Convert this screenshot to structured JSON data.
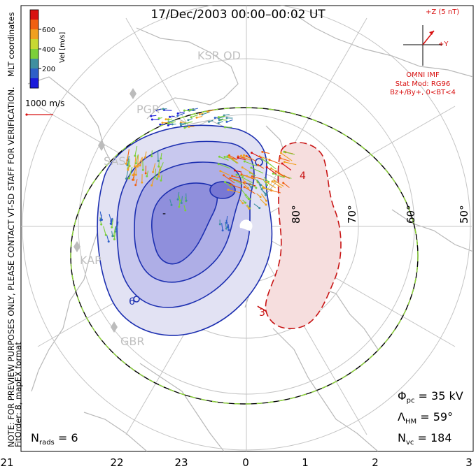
{
  "title": "17/Dec/2003 00:00–00:02 UT",
  "side_note": "NOTE: FOR PREVIEW PURPOSES ONLY, PLEASE CONTACT VT-SD STAFF FOR VERIFICATION.",
  "mlt_label": "MLT coordinates",
  "fit_note": "FitOrder: 8, mapEX format",
  "colorbar": {
    "label": "Vel [m/s]",
    "ticks": [
      "600",
      "400",
      "200"
    ],
    "colors": [
      "#1a1adb",
      "#2e5fc8",
      "#3f8fa0",
      "#7ccf3a",
      "#c8d832",
      "#f0a020",
      "#f06010",
      "#d81010"
    ]
  },
  "scale_vector": "1000 m/s",
  "imf": {
    "z_label": "+Z (5 nT)",
    "y_label": "+Y",
    "source": "OMNI IMF",
    "model": "Stat Mod: RG96",
    "condition": "Bz+/By+, 0<BT<4",
    "color": "#d81010"
  },
  "stats": {
    "phi_sym": "Φ",
    "phi_sub": "pc",
    "phi_val": " = 35 kV",
    "lam_sym": "Λ",
    "lam_sub": "HM",
    "lam_val": " = 59°",
    "nvc_sym": "N",
    "nvc_sub": "vc",
    "nvc_val": " = 184",
    "nrads_sym": "N",
    "nrads_sub": "rads",
    "nrads_val": " = 6"
  },
  "stations": [
    "KSR",
    "OD",
    "PGR",
    "SAS",
    "KAP",
    "GBR"
  ],
  "lat_labels": [
    "80°",
    "70°",
    "60°",
    "50°"
  ],
  "mlt_ticks": [
    "21",
    "22",
    "23",
    "0",
    "1",
    "2",
    "3"
  ],
  "contour_labels": [
    "6",
    "3",
    "4",
    "-"
  ],
  "chart_data": {
    "type": "polar_convection_map",
    "title": "17/Dec/2003 00:00–00:02 UT",
    "lat_circles": [
      80,
      70,
      60,
      50
    ],
    "mlt_axis": [
      21,
      22,
      23,
      0,
      1,
      2,
      3
    ],
    "colorbar_range_ms": [
      0,
      800
    ],
    "colorbar_ticks_ms": [
      200,
      400,
      600
    ],
    "phi_pc_kv": 35,
    "lambda_hm_deg": 59,
    "n_vc": 184,
    "n_rads": 6,
    "potential_cells": [
      "negative (dusk)",
      "positive (dawn)"
    ]
  }
}
